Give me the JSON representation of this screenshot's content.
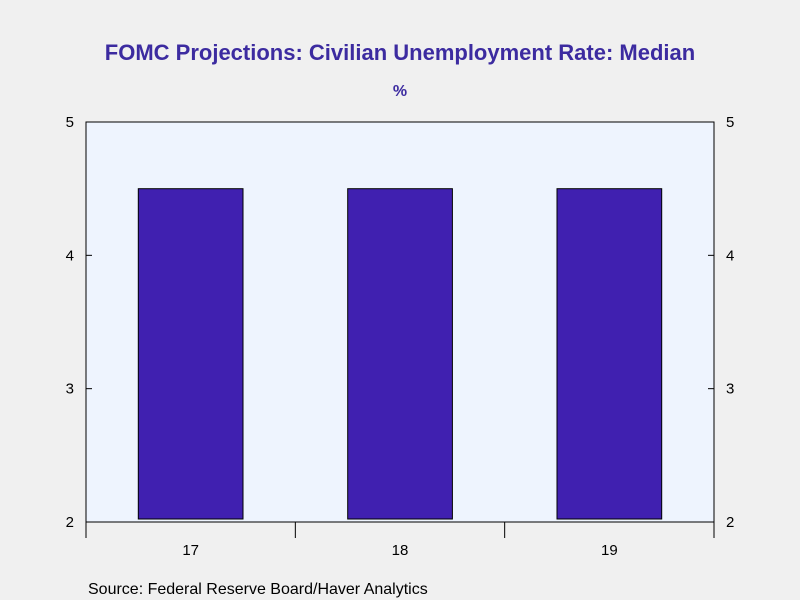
{
  "colors": {
    "background": "#f0f0f0",
    "plot_background": "#eef4fe",
    "bar_fill": "#4020b0",
    "bar_stroke": "#000000",
    "title": "#3c2ba0",
    "axis": "#000000"
  },
  "chart_data": {
    "type": "bar",
    "title": "FOMC Projections: Civilian Unemployment Rate: Median",
    "subtitle": "%",
    "categories": [
      "17",
      "18",
      "19"
    ],
    "values": [
      4.5,
      4.5,
      4.5
    ],
    "ylim": [
      2,
      5
    ],
    "y_ticks": [
      2,
      3,
      4,
      5
    ],
    "y_tick_labels": [
      "2",
      "3",
      "4",
      "5"
    ],
    "right_axis": true,
    "grid": false,
    "source": "Source:  Federal Reserve Board/Haver Analytics"
  }
}
